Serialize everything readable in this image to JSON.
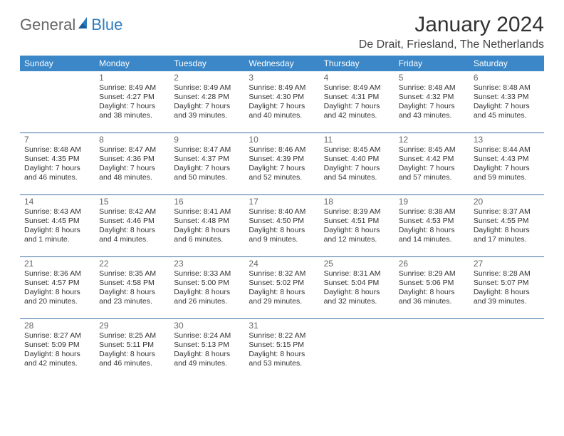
{
  "logo": {
    "text1": "General",
    "text2": "Blue"
  },
  "title": "January 2024",
  "location": "De Drait, Friesland, The Netherlands",
  "header_bg": "#3b87c8",
  "header_fg": "#ffffff",
  "rule_color": "#3b6fa0",
  "text_color": "#333333",
  "font_family": "Arial, Helvetica, sans-serif",
  "title_fontsize": 30,
  "location_fontsize": 16,
  "th_fontsize": 12,
  "daynum_fontsize": 12,
  "detail_fontsize": 10.5,
  "weekdays": [
    "Sunday",
    "Monday",
    "Tuesday",
    "Wednesday",
    "Thursday",
    "Friday",
    "Saturday"
  ],
  "weeks": [
    [
      {
        "n": "",
        "sr": "",
        "ss": "",
        "dl": ""
      },
      {
        "n": "1",
        "sr": "Sunrise: 8:49 AM",
        "ss": "Sunset: 4:27 PM",
        "dl": "Daylight: 7 hours and 38 minutes."
      },
      {
        "n": "2",
        "sr": "Sunrise: 8:49 AM",
        "ss": "Sunset: 4:28 PM",
        "dl": "Daylight: 7 hours and 39 minutes."
      },
      {
        "n": "3",
        "sr": "Sunrise: 8:49 AM",
        "ss": "Sunset: 4:30 PM",
        "dl": "Daylight: 7 hours and 40 minutes."
      },
      {
        "n": "4",
        "sr": "Sunrise: 8:49 AM",
        "ss": "Sunset: 4:31 PM",
        "dl": "Daylight: 7 hours and 42 minutes."
      },
      {
        "n": "5",
        "sr": "Sunrise: 8:48 AM",
        "ss": "Sunset: 4:32 PM",
        "dl": "Daylight: 7 hours and 43 minutes."
      },
      {
        "n": "6",
        "sr": "Sunrise: 8:48 AM",
        "ss": "Sunset: 4:33 PM",
        "dl": "Daylight: 7 hours and 45 minutes."
      }
    ],
    [
      {
        "n": "7",
        "sr": "Sunrise: 8:48 AM",
        "ss": "Sunset: 4:35 PM",
        "dl": "Daylight: 7 hours and 46 minutes."
      },
      {
        "n": "8",
        "sr": "Sunrise: 8:47 AM",
        "ss": "Sunset: 4:36 PM",
        "dl": "Daylight: 7 hours and 48 minutes."
      },
      {
        "n": "9",
        "sr": "Sunrise: 8:47 AM",
        "ss": "Sunset: 4:37 PM",
        "dl": "Daylight: 7 hours and 50 minutes."
      },
      {
        "n": "10",
        "sr": "Sunrise: 8:46 AM",
        "ss": "Sunset: 4:39 PM",
        "dl": "Daylight: 7 hours and 52 minutes."
      },
      {
        "n": "11",
        "sr": "Sunrise: 8:45 AM",
        "ss": "Sunset: 4:40 PM",
        "dl": "Daylight: 7 hours and 54 minutes."
      },
      {
        "n": "12",
        "sr": "Sunrise: 8:45 AM",
        "ss": "Sunset: 4:42 PM",
        "dl": "Daylight: 7 hours and 57 minutes."
      },
      {
        "n": "13",
        "sr": "Sunrise: 8:44 AM",
        "ss": "Sunset: 4:43 PM",
        "dl": "Daylight: 7 hours and 59 minutes."
      }
    ],
    [
      {
        "n": "14",
        "sr": "Sunrise: 8:43 AM",
        "ss": "Sunset: 4:45 PM",
        "dl": "Daylight: 8 hours and 1 minute."
      },
      {
        "n": "15",
        "sr": "Sunrise: 8:42 AM",
        "ss": "Sunset: 4:46 PM",
        "dl": "Daylight: 8 hours and 4 minutes."
      },
      {
        "n": "16",
        "sr": "Sunrise: 8:41 AM",
        "ss": "Sunset: 4:48 PM",
        "dl": "Daylight: 8 hours and 6 minutes."
      },
      {
        "n": "17",
        "sr": "Sunrise: 8:40 AM",
        "ss": "Sunset: 4:50 PM",
        "dl": "Daylight: 8 hours and 9 minutes."
      },
      {
        "n": "18",
        "sr": "Sunrise: 8:39 AM",
        "ss": "Sunset: 4:51 PM",
        "dl": "Daylight: 8 hours and 12 minutes."
      },
      {
        "n": "19",
        "sr": "Sunrise: 8:38 AM",
        "ss": "Sunset: 4:53 PM",
        "dl": "Daylight: 8 hours and 14 minutes."
      },
      {
        "n": "20",
        "sr": "Sunrise: 8:37 AM",
        "ss": "Sunset: 4:55 PM",
        "dl": "Daylight: 8 hours and 17 minutes."
      }
    ],
    [
      {
        "n": "21",
        "sr": "Sunrise: 8:36 AM",
        "ss": "Sunset: 4:57 PM",
        "dl": "Daylight: 8 hours and 20 minutes."
      },
      {
        "n": "22",
        "sr": "Sunrise: 8:35 AM",
        "ss": "Sunset: 4:58 PM",
        "dl": "Daylight: 8 hours and 23 minutes."
      },
      {
        "n": "23",
        "sr": "Sunrise: 8:33 AM",
        "ss": "Sunset: 5:00 PM",
        "dl": "Daylight: 8 hours and 26 minutes."
      },
      {
        "n": "24",
        "sr": "Sunrise: 8:32 AM",
        "ss": "Sunset: 5:02 PM",
        "dl": "Daylight: 8 hours and 29 minutes."
      },
      {
        "n": "25",
        "sr": "Sunrise: 8:31 AM",
        "ss": "Sunset: 5:04 PM",
        "dl": "Daylight: 8 hours and 32 minutes."
      },
      {
        "n": "26",
        "sr": "Sunrise: 8:29 AM",
        "ss": "Sunset: 5:06 PM",
        "dl": "Daylight: 8 hours and 36 minutes."
      },
      {
        "n": "27",
        "sr": "Sunrise: 8:28 AM",
        "ss": "Sunset: 5:07 PM",
        "dl": "Daylight: 8 hours and 39 minutes."
      }
    ],
    [
      {
        "n": "28",
        "sr": "Sunrise: 8:27 AM",
        "ss": "Sunset: 5:09 PM",
        "dl": "Daylight: 8 hours and 42 minutes."
      },
      {
        "n": "29",
        "sr": "Sunrise: 8:25 AM",
        "ss": "Sunset: 5:11 PM",
        "dl": "Daylight: 8 hours and 46 minutes."
      },
      {
        "n": "30",
        "sr": "Sunrise: 8:24 AM",
        "ss": "Sunset: 5:13 PM",
        "dl": "Daylight: 8 hours and 49 minutes."
      },
      {
        "n": "31",
        "sr": "Sunrise: 8:22 AM",
        "ss": "Sunset: 5:15 PM",
        "dl": "Daylight: 8 hours and 53 minutes."
      },
      {
        "n": "",
        "sr": "",
        "ss": "",
        "dl": ""
      },
      {
        "n": "",
        "sr": "",
        "ss": "",
        "dl": ""
      },
      {
        "n": "",
        "sr": "",
        "ss": "",
        "dl": ""
      }
    ]
  ]
}
